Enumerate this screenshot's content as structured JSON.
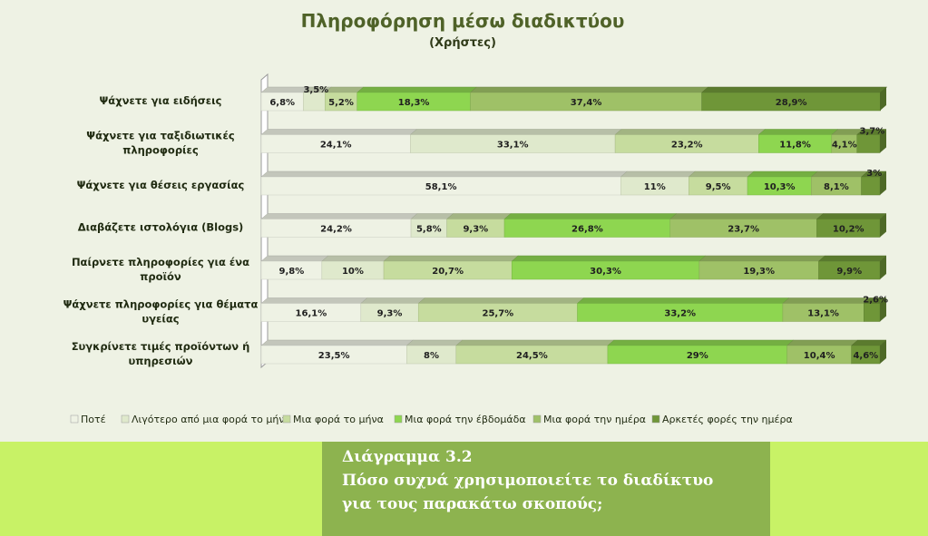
{
  "chart_data": {
    "type": "bar",
    "orientation": "horizontal",
    "stacked": "percent",
    "title": "Πληροφόρηση μέσω διαδικτύου",
    "subtitle": "(Χρήστες)",
    "categories": [
      "Ψάχνετε για ειδήσεις",
      "Ψάχνετε για ταξιδιωτικές πληροφορίες",
      "Ψάχνετε για θέσεις εργασίας",
      "Διαβάζετε ιστολόγια (Blogs)",
      "Παίρνετε πληροφορίες για ένα προϊόν",
      "Ψάχνετε πληροφορίες για θέματα υγείας",
      "Συγκρίνετε τιμές προϊόντων ή υπηρεσιών"
    ],
    "category_lines": [
      [
        "Ψάχνετε για ειδήσεις"
      ],
      [
        "Ψάχνετε για ταξιδιωτικές",
        "πληροφορίες"
      ],
      [
        "Ψάχνετε για θέσεις εργασίας"
      ],
      [
        "Διαβάζετε ιστολόγια (Blogs)"
      ],
      [
        "Παίρνετε πληροφορίες για ένα",
        "προϊόν"
      ],
      [
        "Ψάχνετε πληροφορίες για θέματα",
        "υγείας"
      ],
      [
        "Συγκρίνετε τιμές προϊόντων ή",
        "υπηρεσιών"
      ]
    ],
    "series": [
      {
        "name": "Ποτέ",
        "color": "#eef2e4",
        "values": [
          6.8,
          24.1,
          58.1,
          24.2,
          9.8,
          16.1,
          23.5
        ],
        "labels": [
          "6,8%",
          "24,1%",
          "58,1%",
          "24,2%",
          "9,8%",
          "16,1%",
          "23,5%"
        ]
      },
      {
        "name": "Λιγότερο από μια φορά το μήνα",
        "color": "#dfe9cc",
        "values": [
          3.5,
          33.1,
          11,
          5.8,
          10,
          9.3,
          8
        ],
        "labels": [
          "3,5%",
          "33,1%",
          "11%",
          "5,8%",
          "10%",
          "9,3%",
          "8%"
        ]
      },
      {
        "name": "Μια φορά το μήνα",
        "color": "#c6dc9e",
        "values": [
          5.2,
          23.2,
          9.5,
          9.3,
          20.7,
          25.7,
          24.5
        ],
        "labels": [
          "5,2%",
          "23,2%",
          "9,5%",
          "9,3%",
          "20,7%",
          "25,7%",
          "24,5%"
        ]
      },
      {
        "name": "Μια φορά την έβδομάδα",
        "color": "#8ed650",
        "values": [
          18.3,
          11.8,
          10.3,
          26.8,
          30.3,
          33.2,
          29
        ],
        "labels": [
          "18,3%",
          "11,8%",
          "10,3%",
          "26,8%",
          "30,3%",
          "33,2%",
          "29%"
        ]
      },
      {
        "name": "Μια φορά την ημέρα",
        "color": "#9fc167",
        "values": [
          37.4,
          4.1,
          8.1,
          23.7,
          19.3,
          13.1,
          10.4
        ],
        "labels": [
          "37,4%",
          "4,1%",
          "8,1%",
          "23,7%",
          "19,3%",
          "13,1%",
          "10,4%"
        ]
      },
      {
        "name": "Αρκετές φορές την ημέρα",
        "color": "#6f9638",
        "values": [
          28.9,
          3.7,
          3,
          10.2,
          9.9,
          2.6,
          4.6
        ],
        "labels": [
          "28,9%",
          "3,7%",
          "3%",
          "10,2%",
          "9,9%",
          "2,6%",
          "4,6%"
        ]
      }
    ],
    "xlim": [
      0,
      100
    ],
    "grid": false,
    "legend": "bottom"
  },
  "caption": {
    "number": "Διάγραμμα 3.2",
    "text": "Πόσο συχνά χρησιμοποιείτε το διαδίκτυο για τους παρακάτω σκοπούς;"
  }
}
